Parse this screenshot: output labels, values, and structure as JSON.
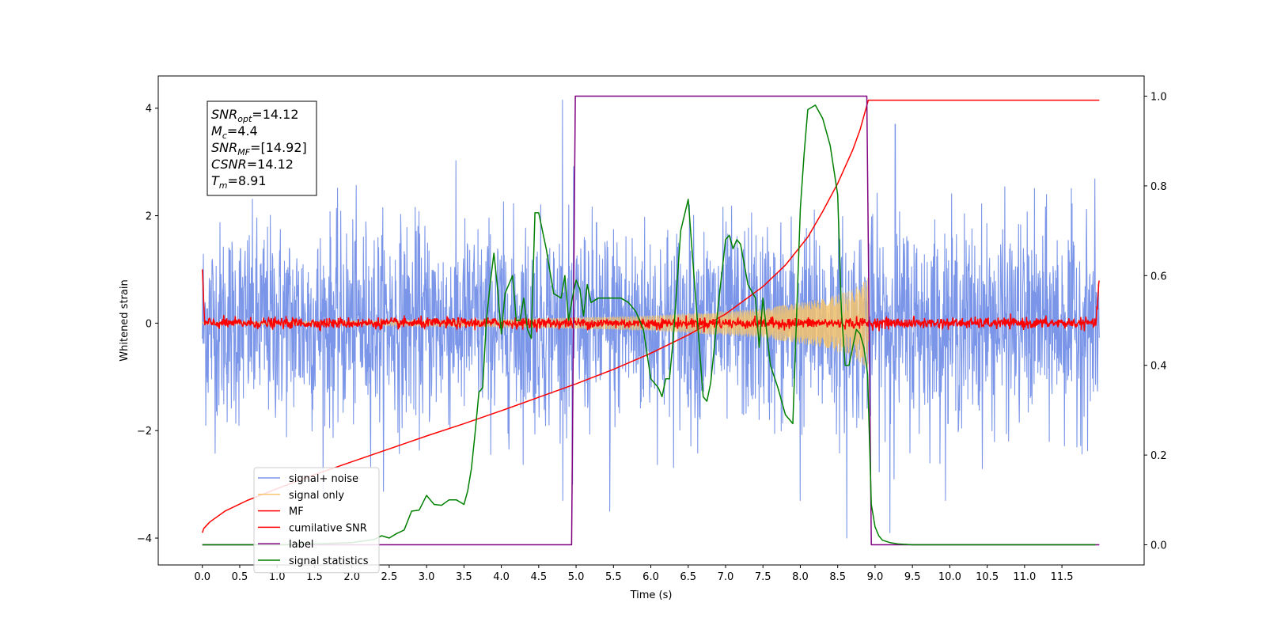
{
  "chart_data": {
    "type": "line",
    "title": "",
    "xlabel": "Time (s)",
    "ylabel": "Whitened strain",
    "xlim": [
      -0.59,
      12.6
    ],
    "ylim": [
      -4.5,
      4.6
    ],
    "y2lim": [
      -0.045,
      1.045
    ],
    "x_ticks": [
      0.0,
      0.5,
      1.0,
      1.5,
      2.0,
      2.5,
      3.0,
      3.5,
      4.0,
      4.5,
      5.0,
      5.5,
      6.0,
      6.5,
      7.0,
      7.5,
      8.0,
      8.5,
      9.0,
      9.5,
      10.0,
      10.5,
      11.0,
      11.5
    ],
    "x_tick_labels": [
      "0.0",
      "0.5",
      "1.0",
      "1.5",
      "2.0",
      "2.5",
      "3.0",
      "3.5",
      "4.0",
      "4.5",
      "5.0",
      "5.5",
      "6.0",
      "6.5",
      "7.0",
      "7.5",
      "8.0",
      "8.5",
      "9.0",
      "9.5",
      "10.0",
      "10.5",
      "11.0",
      "11.5"
    ],
    "y_ticks": [
      -4,
      -2,
      0,
      2,
      4
    ],
    "y_tick_labels": [
      "−4",
      "−2",
      "0",
      "2",
      "4"
    ],
    "y2_ticks": [
      0.0,
      0.2,
      0.4,
      0.6,
      0.8,
      1.0
    ],
    "y2_tick_labels": [
      "0.0",
      "0.2",
      "0.4",
      "0.6",
      "0.8",
      "1.0"
    ],
    "grid": false,
    "legend_position": "lower-left",
    "annotation": {
      "lines": [
        {
          "base": "SNR",
          "sub": "opt",
          "value": "=14.12"
        },
        {
          "base": "M",
          "sub": "c",
          "value": "=4.4"
        },
        {
          "base": "SNR",
          "sub": "MF",
          "value": "=[14.92]"
        },
        {
          "base": "CSNR",
          "sub": "",
          "value": "=14.12"
        },
        {
          "base": "T",
          "sub": "m",
          "value": "=8.91"
        }
      ]
    },
    "series": [
      {
        "name": "signal+ noise",
        "color": "#7b96e8",
        "axis": "left",
        "kind": "noise",
        "x_range": [
          0.0,
          12.0
        ],
        "amplitude": 2.4,
        "peaks": [
          [
            4.82,
            4.15
          ],
          [
            4.95,
            -3.0
          ],
          [
            5.45,
            -3.5
          ],
          [
            8.62,
            -4.0
          ],
          [
            9.2,
            -3.9
          ],
          [
            9.27,
            3.7
          ],
          [
            8.0,
            -3.3
          ]
        ]
      },
      {
        "name": "signal only",
        "color": "#f5c46c",
        "axis": "left",
        "kind": "chirp",
        "x_range": [
          0.0,
          8.91
        ],
        "envelope": [
          [
            0.0,
            0.02
          ],
          [
            2.0,
            0.04
          ],
          [
            4.0,
            0.07
          ],
          [
            6.0,
            0.14
          ],
          [
            7.5,
            0.27
          ],
          [
            8.3,
            0.45
          ],
          [
            8.7,
            0.62
          ],
          [
            8.91,
            0.85
          ]
        ]
      },
      {
        "name": "MF",
        "color": "#ff0000",
        "axis": "left",
        "kind": "mf",
        "x_range": [
          0.0,
          12.0
        ],
        "start_value": 1.0,
        "end_value": 0.9,
        "noise": 0.05
      },
      {
        "name": "cumilative SNR",
        "color": "#ff0000",
        "axis": "left",
        "kind": "line",
        "x": [
          0.0,
          0.02,
          0.1,
          0.3,
          0.6,
          1.0,
          1.5,
          2.0,
          2.5,
          3.0,
          3.5,
          4.0,
          4.5,
          5.0,
          5.5,
          6.0,
          6.5,
          7.0,
          7.5,
          7.8,
          8.1,
          8.3,
          8.5,
          8.7,
          8.8,
          8.91,
          12.0
        ],
        "y": [
          -3.9,
          -3.82,
          -3.7,
          -3.5,
          -3.3,
          -3.08,
          -2.82,
          -2.58,
          -2.34,
          -2.1,
          -1.87,
          -1.63,
          -1.38,
          -1.13,
          -0.86,
          -0.56,
          -0.22,
          0.17,
          0.68,
          1.08,
          1.6,
          2.08,
          2.6,
          3.22,
          3.6,
          4.15,
          4.15
        ]
      },
      {
        "name": "label",
        "color": "#800080",
        "axis": "right",
        "kind": "line",
        "x": [
          0.0,
          4.94,
          4.99,
          8.89,
          8.95,
          12.0
        ],
        "y": [
          0.0,
          0.0,
          1.0,
          1.0,
          0.0,
          0.0
        ]
      },
      {
        "name": "signal statistics",
        "color": "#008000",
        "axis": "right",
        "kind": "line",
        "x": [
          0.0,
          0.5,
          1.0,
          1.5,
          2.0,
          2.3,
          2.4,
          2.5,
          2.6,
          2.7,
          2.8,
          2.9,
          3.0,
          3.1,
          3.2,
          3.3,
          3.4,
          3.5,
          3.55,
          3.6,
          3.65,
          3.7,
          3.75,
          3.8,
          3.85,
          3.9,
          3.95,
          4.0,
          4.05,
          4.1,
          4.15,
          4.2,
          4.25,
          4.3,
          4.35,
          4.4,
          4.45,
          4.5,
          4.6,
          4.7,
          4.8,
          4.85,
          4.9,
          4.95,
          5.0,
          5.05,
          5.1,
          5.15,
          5.2,
          5.3,
          5.4,
          5.5,
          5.6,
          5.7,
          5.8,
          5.9,
          6.0,
          6.1,
          6.15,
          6.2,
          6.25,
          6.3,
          6.4,
          6.5,
          6.6,
          6.7,
          6.75,
          6.8,
          6.85,
          6.9,
          7.0,
          7.05,
          7.1,
          7.15,
          7.2,
          7.3,
          7.4,
          7.45,
          7.5,
          7.6,
          7.7,
          7.8,
          7.9,
          8.0,
          8.05,
          8.1,
          8.2,
          8.3,
          8.4,
          8.5,
          8.55,
          8.6,
          8.65,
          8.7,
          8.75,
          8.8,
          8.85,
          8.9,
          8.95,
          9.0,
          9.05,
          9.1,
          9.2,
          9.3,
          9.5,
          10.0,
          10.5,
          11.0,
          11.5,
          11.95
        ],
        "y": [
          0.0,
          0.0,
          0.0,
          0.002,
          0.005,
          0.012,
          0.02,
          0.015,
          0.025,
          0.033,
          0.075,
          0.077,
          0.11,
          0.09,
          0.088,
          0.1,
          0.1,
          0.09,
          0.12,
          0.17,
          0.25,
          0.34,
          0.35,
          0.5,
          0.58,
          0.65,
          0.57,
          0.47,
          0.56,
          0.58,
          0.6,
          0.5,
          0.5,
          0.55,
          0.48,
          0.46,
          0.74,
          0.74,
          0.66,
          0.56,
          0.55,
          0.6,
          0.5,
          0.55,
          0.59,
          0.57,
          0.51,
          0.58,
          0.54,
          0.55,
          0.55,
          0.55,
          0.55,
          0.54,
          0.52,
          0.48,
          0.37,
          0.35,
          0.33,
          0.37,
          0.37,
          0.46,
          0.7,
          0.77,
          0.55,
          0.33,
          0.32,
          0.36,
          0.44,
          0.53,
          0.68,
          0.69,
          0.66,
          0.68,
          0.67,
          0.58,
          0.55,
          0.44,
          0.55,
          0.4,
          0.35,
          0.29,
          0.27,
          0.75,
          0.87,
          0.97,
          0.98,
          0.95,
          0.89,
          0.78,
          0.52,
          0.4,
          0.4,
          0.44,
          0.48,
          0.47,
          0.44,
          0.38,
          0.09,
          0.04,
          0.02,
          0.01,
          0.005,
          0.002,
          0.0,
          0.0,
          0.0,
          0.0,
          0.0,
          0.0
        ]
      }
    ]
  }
}
